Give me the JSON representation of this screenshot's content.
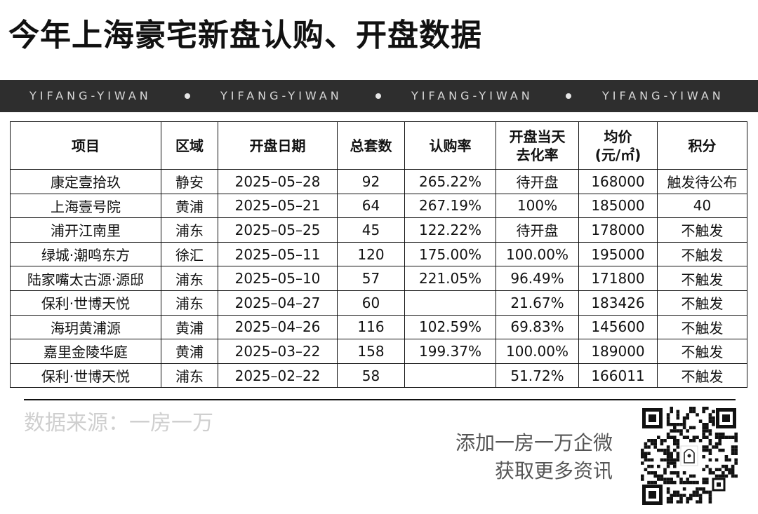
{
  "title": "今年上海豪宅新盘认购、开盘数据",
  "banner": {
    "items": [
      "YIFANG-YIWAN",
      "YIFANG-YIWAN",
      "YIFANG-YIWAN",
      "YIFANG-YIWAN"
    ],
    "background": "#2e2e2e"
  },
  "table": {
    "headers": {
      "project": "项目",
      "district": "区域",
      "open_date": "开盘日期",
      "total_units": "总套数",
      "subscription_rate": "认购率",
      "sellthrough_line1": "开盘当天",
      "sellthrough_line2": "去化率",
      "avg_price_line1": "均价",
      "avg_price_line2": "(元/㎡)",
      "score": "积分"
    },
    "rows": [
      {
        "project": "康定壹拾玖",
        "district": "静安",
        "open_date": "2025–05–28",
        "total_units": "92",
        "subscription_rate": "265.22%",
        "sellthrough": "待开盘",
        "avg_price": "168000",
        "score": "触发待公布"
      },
      {
        "project": "上海壹号院",
        "district": "黄浦",
        "open_date": "2025–05–21",
        "total_units": "64",
        "subscription_rate": "267.19%",
        "sellthrough": "100%",
        "avg_price": "185000",
        "score": "40"
      },
      {
        "project": "浦开江南里",
        "district": "浦东",
        "open_date": "2025–05–25",
        "total_units": "45",
        "subscription_rate": "122.22%",
        "sellthrough": "待开盘",
        "avg_price": "178000",
        "score": "不触发"
      },
      {
        "project": "绿城·潮鸣东方",
        "district": "徐汇",
        "open_date": "2025–05–11",
        "total_units": "120",
        "subscription_rate": "175.00%",
        "sellthrough": "100.00%",
        "avg_price": "195000",
        "score": "不触发"
      },
      {
        "project": "陆家嘴太古源·源邸",
        "district": "浦东",
        "open_date": "2025–05–10",
        "total_units": "57",
        "subscription_rate": "221.05%",
        "sellthrough": "96.49%",
        "avg_price": "171800",
        "score": "不触发"
      },
      {
        "project": "保利·世博天悦",
        "district": "浦东",
        "open_date": "2025–04–27",
        "total_units": "60",
        "subscription_rate": "",
        "sellthrough": "21.67%",
        "avg_price": "183426",
        "score": "不触发"
      },
      {
        "project": "海玥黄浦源",
        "district": "黄浦",
        "open_date": "2025–04–26",
        "total_units": "116",
        "subscription_rate": "102.59%",
        "sellthrough": "69.83%",
        "avg_price": "145600",
        "score": "不触发"
      },
      {
        "project": "嘉里金陵华庭",
        "district": "黄浦",
        "open_date": "2025–03–22",
        "total_units": "158",
        "subscription_rate": "199.37%",
        "sellthrough": "100.00%",
        "avg_price": "189000",
        "score": "不触发"
      },
      {
        "project": "保利·世博天悦",
        "district": "浦东",
        "open_date": "2025–02–22",
        "total_units": "58",
        "subscription_rate": "",
        "sellthrough": "51.72%",
        "avg_price": "166011",
        "score": "不触发"
      }
    ]
  },
  "watermark": {
    "big": "一房一万",
    "small": "数据来源：一房一万"
  },
  "footer": {
    "source": "数据来源：一房一万",
    "promo_line1": "添加一房一万企微",
    "promo_line2": "获取更多资讯"
  }
}
